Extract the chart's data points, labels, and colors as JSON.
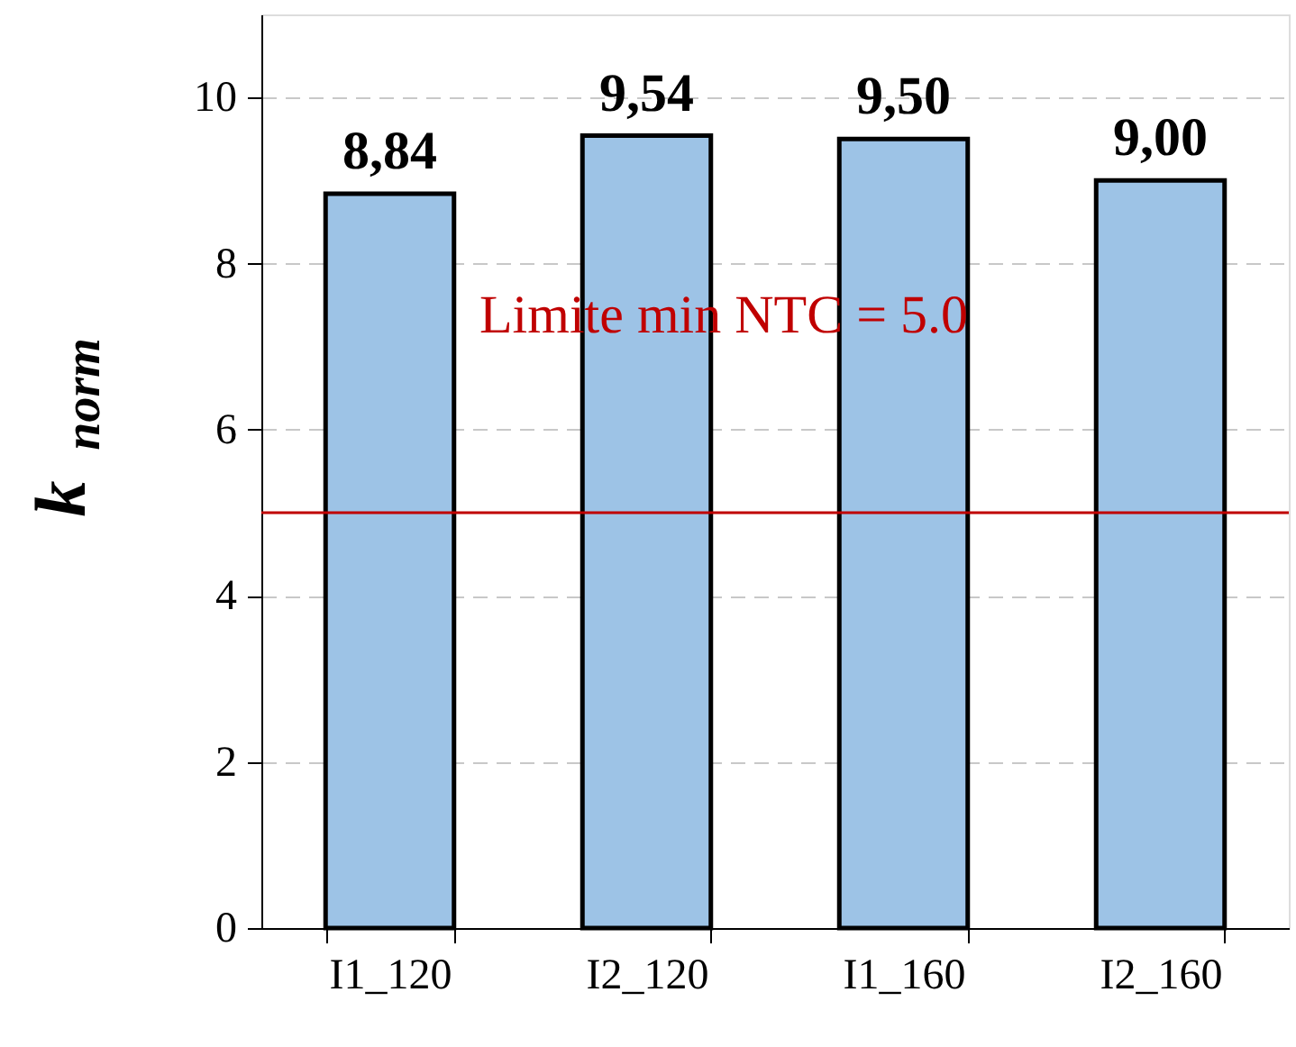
{
  "chart_data": {
    "type": "bar",
    "ylabel": "k$_{norm}$",
    "categories": [
      "I1_120",
      "I2_120",
      "I1_160",
      "I2_160"
    ],
    "values": [
      8.84,
      9.54,
      9.5,
      9.0
    ],
    "value_labels": [
      "8,84",
      "9,54",
      "9,50",
      "9,00"
    ],
    "color": "#9dc3e6",
    "ylim": [
      0,
      11
    ],
    "yticks": [
      0,
      2,
      4,
      6,
      8,
      10
    ],
    "grid": "y",
    "ref_lines": [
      {
        "axis": "y",
        "value": 5.0,
        "label": "Limite min NTC = 5.0",
        "color": "#c00000",
        "line_style": "solid"
      }
    ]
  }
}
